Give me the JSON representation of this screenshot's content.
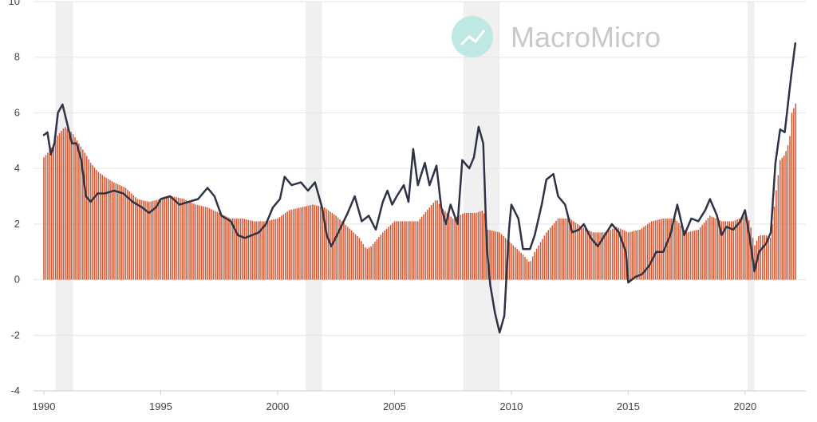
{
  "watermark": {
    "text": "MacroMicro",
    "logo_color": "#bfe8e2"
  },
  "colors": {
    "bars": "#d9532c",
    "line": "#2e3445",
    "recession": "#f0f0f0",
    "grid": "#e6e6e6",
    "axis": "#cfcfcf"
  },
  "chart_data": {
    "type": "bar",
    "grid": true,
    "legend": "none",
    "xlim": [
      1990.0,
      2022.6
    ],
    "ylim": [
      -4,
      10
    ],
    "x_ticks": [
      1990,
      1995,
      2000,
      2005,
      2010,
      2015,
      2020
    ],
    "x_tick_labels": [
      "1990",
      "1995",
      "2000",
      "2005",
      "2010",
      "2015",
      "2020"
    ],
    "y_ticks": [
      -4,
      -2,
      0,
      2,
      4,
      6,
      8,
      10
    ],
    "y_tick_labels": [
      "-4",
      "-2",
      "0",
      "2",
      "4",
      "6",
      "8",
      "10"
    ],
    "recessions": [
      [
        1990.5,
        1991.25
      ],
      [
        2001.2,
        2001.9
      ],
      [
        2007.95,
        2009.5
      ],
      [
        2020.1,
        2020.4
      ]
    ],
    "bar_series": {
      "name": "",
      "points": [
        [
          1990.0,
          4.4
        ],
        [
          1990.3,
          4.7
        ],
        [
          1990.6,
          5.2
        ],
        [
          1990.9,
          5.5
        ],
        [
          1991.2,
          5.3
        ],
        [
          1991.5,
          4.9
        ],
        [
          1991.8,
          4.5
        ],
        [
          1992.0,
          4.2
        ],
        [
          1992.3,
          3.9
        ],
        [
          1992.6,
          3.7
        ],
        [
          1993.0,
          3.5
        ],
        [
          1993.5,
          3.3
        ],
        [
          1994.0,
          2.9
        ],
        [
          1994.5,
          2.8
        ],
        [
          1995.0,
          2.9
        ],
        [
          1995.5,
          3.0
        ],
        [
          1996.0,
          2.9
        ],
        [
          1996.5,
          2.7
        ],
        [
          1997.0,
          2.6
        ],
        [
          1997.5,
          2.4
        ],
        [
          1998.0,
          2.2
        ],
        [
          1998.5,
          2.2
        ],
        [
          1999.0,
          2.1
        ],
        [
          1999.5,
          2.1
        ],
        [
          2000.0,
          2.2
        ],
        [
          2000.5,
          2.5
        ],
        [
          2001.0,
          2.6
        ],
        [
          2001.5,
          2.7
        ],
        [
          2002.0,
          2.6
        ],
        [
          2002.5,
          2.3
        ],
        [
          2003.0,
          1.9
        ],
        [
          2003.5,
          1.5
        ],
        [
          2003.8,
          1.1
        ],
        [
          2004.0,
          1.2
        ],
        [
          2004.5,
          1.7
        ],
        [
          2005.0,
          2.1
        ],
        [
          2005.5,
          2.1
        ],
        [
          2006.0,
          2.1
        ],
        [
          2006.5,
          2.6
        ],
        [
          2006.8,
          2.9
        ],
        [
          2007.0,
          2.6
        ],
        [
          2007.5,
          2.2
        ],
        [
          2008.0,
          2.4
        ],
        [
          2008.5,
          2.4
        ],
        [
          2008.8,
          2.5
        ],
        [
          2009.0,
          1.8
        ],
        [
          2009.5,
          1.7
        ],
        [
          2010.0,
          1.3
        ],
        [
          2010.5,
          0.9
        ],
        [
          2010.8,
          0.6
        ],
        [
          2011.0,
          1.0
        ],
        [
          2011.5,
          1.7
        ],
        [
          2012.0,
          2.2
        ],
        [
          2012.5,
          2.2
        ],
        [
          2013.0,
          1.9
        ],
        [
          2013.5,
          1.7
        ],
        [
          2014.0,
          1.7
        ],
        [
          2014.5,
          1.9
        ],
        [
          2015.0,
          1.7
        ],
        [
          2015.5,
          1.8
        ],
        [
          2016.0,
          2.1
        ],
        [
          2016.5,
          2.2
        ],
        [
          2017.0,
          2.2
        ],
        [
          2017.5,
          1.7
        ],
        [
          2018.0,
          1.8
        ],
        [
          2018.5,
          2.3
        ],
        [
          2019.0,
          2.1
        ],
        [
          2019.5,
          2.1
        ],
        [
          2020.0,
          2.3
        ],
        [
          2020.2,
          2.1
        ],
        [
          2020.4,
          1.2
        ],
        [
          2020.6,
          1.6
        ],
        [
          2020.9,
          1.6
        ],
        [
          2021.1,
          1.5
        ],
        [
          2021.3,
          3.0
        ],
        [
          2021.5,
          4.3
        ],
        [
          2021.7,
          4.5
        ],
        [
          2021.9,
          5.0
        ],
        [
          2022.0,
          6.0
        ],
        [
          2022.2,
          6.4
        ]
      ]
    },
    "line_series": {
      "name": "",
      "points": [
        [
          1990.0,
          5.2
        ],
        [
          1990.15,
          5.3
        ],
        [
          1990.3,
          4.5
        ],
        [
          1990.45,
          4.9
        ],
        [
          1990.6,
          6.0
        ],
        [
          1990.8,
          6.3
        ],
        [
          1991.0,
          5.6
        ],
        [
          1991.2,
          4.9
        ],
        [
          1991.4,
          4.9
        ],
        [
          1991.6,
          4.3
        ],
        [
          1991.8,
          3.0
        ],
        [
          1992.0,
          2.8
        ],
        [
          1992.3,
          3.1
        ],
        [
          1992.6,
          3.1
        ],
        [
          1993.0,
          3.2
        ],
        [
          1993.4,
          3.1
        ],
        [
          1993.8,
          2.8
        ],
        [
          1994.2,
          2.6
        ],
        [
          1994.5,
          2.4
        ],
        [
          1994.8,
          2.6
        ],
        [
          1995.0,
          2.9
        ],
        [
          1995.4,
          3.0
        ],
        [
          1995.8,
          2.7
        ],
        [
          1996.2,
          2.8
        ],
        [
          1996.6,
          2.9
        ],
        [
          1997.0,
          3.3
        ],
        [
          1997.3,
          3.0
        ],
        [
          1997.6,
          2.3
        ],
        [
          1998.0,
          2.1
        ],
        [
          1998.3,
          1.6
        ],
        [
          1998.6,
          1.5
        ],
        [
          1998.9,
          1.6
        ],
        [
          1999.2,
          1.7
        ],
        [
          1999.5,
          2.0
        ],
        [
          1999.8,
          2.6
        ],
        [
          2000.1,
          2.9
        ],
        [
          2000.3,
          3.7
        ],
        [
          2000.6,
          3.4
        ],
        [
          2001.0,
          3.5
        ],
        [
          2001.3,
          3.2
        ],
        [
          2001.6,
          3.5
        ],
        [
          2001.9,
          2.6
        ],
        [
          2002.1,
          1.6
        ],
        [
          2002.3,
          1.2
        ],
        [
          2002.6,
          1.7
        ],
        [
          2003.0,
          2.4
        ],
        [
          2003.3,
          3.0
        ],
        [
          2003.6,
          2.1
        ],
        [
          2003.9,
          2.3
        ],
        [
          2004.2,
          1.8
        ],
        [
          2004.5,
          2.8
        ],
        [
          2004.7,
          3.2
        ],
        [
          2004.9,
          2.7
        ],
        [
          2005.1,
          3.0
        ],
        [
          2005.4,
          3.4
        ],
        [
          2005.6,
          2.8
        ],
        [
          2005.8,
          4.7
        ],
        [
          2006.0,
          3.4
        ],
        [
          2006.3,
          4.2
        ],
        [
          2006.5,
          3.4
        ],
        [
          2006.8,
          4.1
        ],
        [
          2007.0,
          2.6
        ],
        [
          2007.2,
          2.0
        ],
        [
          2007.4,
          2.7
        ],
        [
          2007.7,
          2.0
        ],
        [
          2007.9,
          4.3
        ],
        [
          2008.2,
          4.0
        ],
        [
          2008.4,
          4.4
        ],
        [
          2008.6,
          5.5
        ],
        [
          2008.8,
          4.9
        ],
        [
          2008.95,
          1.2
        ],
        [
          2009.1,
          -0.2
        ],
        [
          2009.3,
          -1.2
        ],
        [
          2009.5,
          -1.9
        ],
        [
          2009.7,
          -1.3
        ],
        [
          2009.9,
          1.8
        ],
        [
          2010.0,
          2.7
        ],
        [
          2010.3,
          2.2
        ],
        [
          2010.5,
          1.1
        ],
        [
          2010.8,
          1.1
        ],
        [
          2011.0,
          1.6
        ],
        [
          2011.3,
          2.7
        ],
        [
          2011.5,
          3.6
        ],
        [
          2011.8,
          3.8
        ],
        [
          2012.0,
          3.0
        ],
        [
          2012.3,
          2.7
        ],
        [
          2012.6,
          1.7
        ],
        [
          2012.9,
          1.8
        ],
        [
          2013.1,
          2.0
        ],
        [
          2013.4,
          1.5
        ],
        [
          2013.7,
          1.2
        ],
        [
          2014.0,
          1.6
        ],
        [
          2014.3,
          2.0
        ],
        [
          2014.6,
          1.7
        ],
        [
          2014.9,
          1.0
        ],
        [
          2015.0,
          -0.1
        ],
        [
          2015.3,
          0.1
        ],
        [
          2015.6,
          0.2
        ],
        [
          2015.9,
          0.5
        ],
        [
          2016.2,
          1.0
        ],
        [
          2016.5,
          1.0
        ],
        [
          2016.8,
          1.6
        ],
        [
          2017.1,
          2.7
        ],
        [
          2017.4,
          1.6
        ],
        [
          2017.7,
          2.2
        ],
        [
          2018.0,
          2.1
        ],
        [
          2018.3,
          2.5
        ],
        [
          2018.5,
          2.9
        ],
        [
          2018.8,
          2.3
        ],
        [
          2019.0,
          1.6
        ],
        [
          2019.2,
          1.9
        ],
        [
          2019.5,
          1.8
        ],
        [
          2019.8,
          2.1
        ],
        [
          2020.0,
          2.5
        ],
        [
          2020.2,
          1.5
        ],
        [
          2020.4,
          0.3
        ],
        [
          2020.6,
          1.0
        ],
        [
          2020.9,
          1.3
        ],
        [
          2021.1,
          1.7
        ],
        [
          2021.3,
          4.2
        ],
        [
          2021.5,
          5.4
        ],
        [
          2021.7,
          5.3
        ],
        [
          2021.9,
          6.8
        ],
        [
          2022.0,
          7.5
        ],
        [
          2022.15,
          8.5
        ]
      ]
    }
  }
}
